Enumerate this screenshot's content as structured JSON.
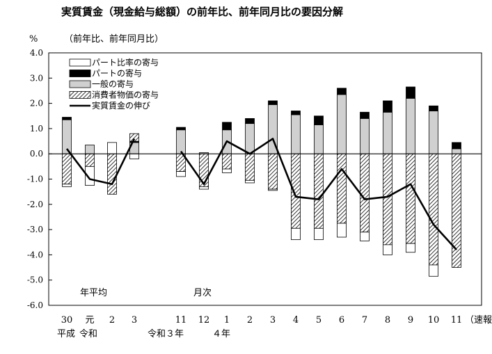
{
  "chart_data": {
    "type": "bar",
    "title": "実質賃金（現金給与総額）の前年比、前年同月比の要因分解",
    "y_unit": "%",
    "ylabel": "（前年比、前年同月比）",
    "ylim": [
      -6.0,
      4.0
    ],
    "y_ticks": [
      "4.0",
      "3.0",
      "2.0",
      "1.0",
      "0.0",
      "-1.0",
      "-2.0",
      "-3.0",
      "-4.0",
      "-5.0",
      "-6.0"
    ],
    "stacked": true,
    "categories": [
      "30",
      "元",
      "2",
      "3",
      "11",
      "12",
      "1",
      "2",
      "3",
      "4",
      "5",
      "6",
      "7",
      "8",
      "9",
      "10",
      "11"
    ],
    "section_labels": [
      "年平均",
      "月次"
    ],
    "era_labels": [
      "平成",
      "令和",
      "令和３年",
      "４年"
    ],
    "preliminary_note": "（速報）",
    "legend_placement": "top-left",
    "series": [
      {
        "name": "パート比率の寄与",
        "color": "#ffffff",
        "values": [
          -0.1,
          -0.75,
          0.45,
          -0.2,
          -0.2,
          -0.1,
          -0.15,
          -0.1,
          -0.05,
          -0.45,
          -0.45,
          -0.55,
          -0.35,
          -0.4,
          -0.35,
          -0.45,
          0.0
        ]
      },
      {
        "name": "パートの寄与",
        "color": "#000000",
        "values": [
          0.1,
          0.0,
          0.0,
          0.05,
          0.1,
          0.0,
          0.3,
          0.2,
          0.15,
          0.15,
          0.35,
          0.25,
          0.25,
          0.45,
          0.45,
          0.2,
          0.25
        ]
      },
      {
        "name": "一般の寄与",
        "color": "#d0d0d0",
        "values": [
          1.35,
          0.35,
          0.0,
          0.45,
          0.95,
          0.05,
          0.95,
          1.2,
          1.95,
          1.55,
          1.15,
          2.35,
          1.4,
          1.65,
          2.2,
          1.7,
          0.2
        ]
      },
      {
        "name": "消費者物価の寄与",
        "color": "hatch",
        "values": [
          -1.2,
          -0.5,
          -1.6,
          0.3,
          -0.7,
          -1.3,
          -0.6,
          -1.05,
          -1.4,
          -2.95,
          -2.95,
          -2.75,
          -3.1,
          -3.6,
          -3.55,
          -4.4,
          -4.5
        ]
      }
    ],
    "line_series": {
      "name": "実質賃金の伸び",
      "color": "#000000",
      "values": [
        0.2,
        -1.0,
        -1.2,
        0.6,
        0.1,
        -1.2,
        0.5,
        0.0,
        0.6,
        -1.7,
        -1.8,
        -0.6,
        -1.8,
        -1.7,
        -1.2,
        -2.8,
        -3.8
      ],
      "segments": [
        [
          0,
          3
        ],
        [
          4,
          16
        ]
      ]
    }
  }
}
